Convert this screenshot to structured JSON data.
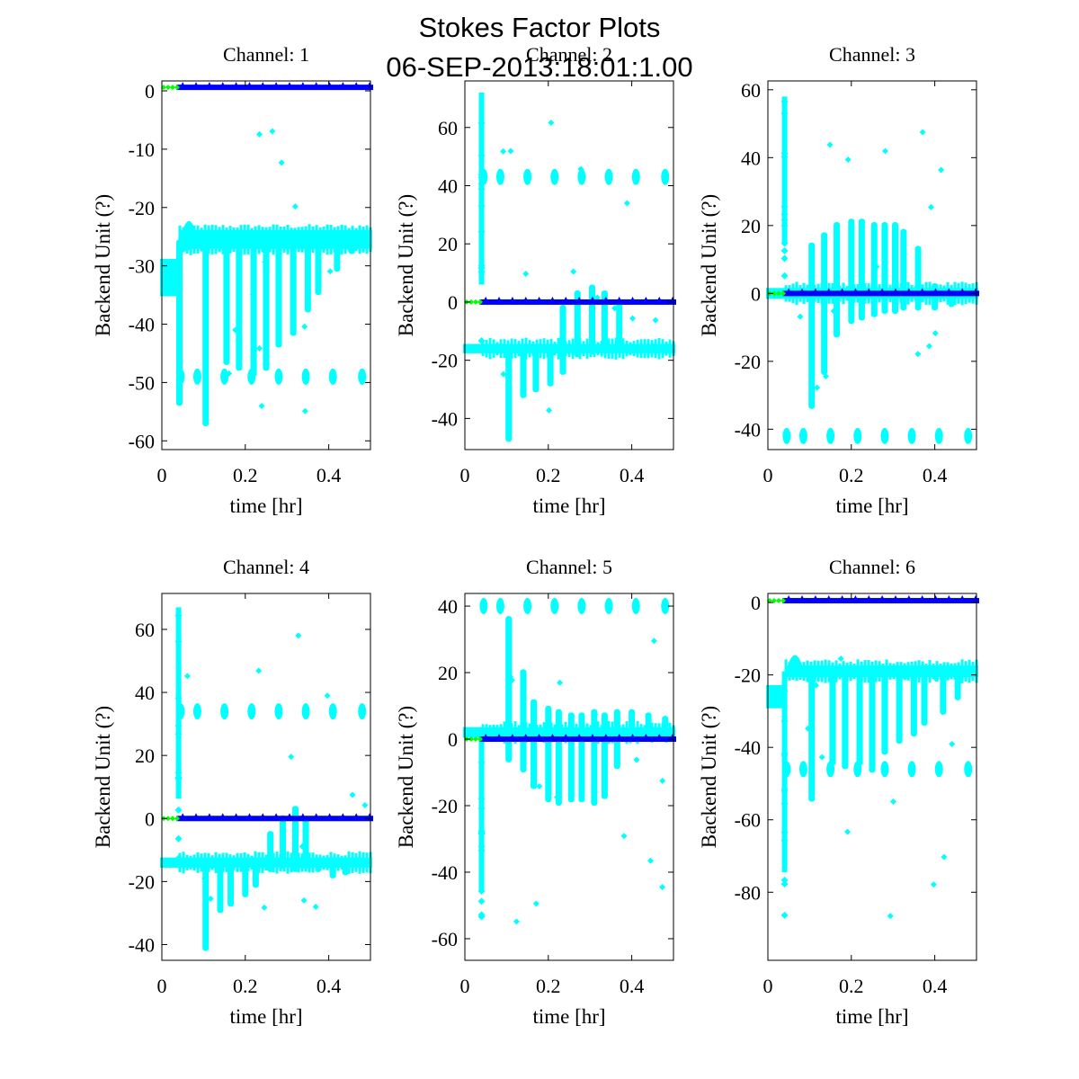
{
  "figure": {
    "title_line1": "Stokes Factor Plots",
    "title_line2": "06-SEP-2013:18:01:1.00"
  },
  "colors": {
    "stokes_main": "#00ffff",
    "stokes_reference": "#0000ff",
    "stokes_initial": "#00ff00",
    "axes": "#000000"
  },
  "chart_data": [
    {
      "type": "scatter",
      "title": "Channel: 1",
      "xlabel": "time [hr]",
      "ylabel": "Backend Unit (?)",
      "xlim": [
        0,
        0.5
      ],
      "ylim": [
        -61.5,
        1.7
      ],
      "xticks": [
        0,
        0.2,
        0.4
      ],
      "xtick_labels": [
        "0",
        "0.2",
        "0.4"
      ],
      "yticks": [
        0,
        -10,
        -20,
        -30,
        -40,
        -50,
        -60
      ],
      "ytick_labels": [
        "0",
        "-10",
        "-20",
        "-30",
        "-40",
        "-50",
        "-60"
      ],
      "grid": false,
      "series": [
        {
          "name": "initial",
          "color": "green",
          "x_range": [
            0,
            0.035
          ],
          "level": 0.5
        },
        {
          "name": "reference",
          "color": "blue",
          "x_range": [
            0.035,
            0.5
          ],
          "level": 0.6
        },
        {
          "name": "main",
          "color": "cyan",
          "baseline": -25.5,
          "early_baseline": -32,
          "bump": {
            "x": 0.065,
            "y": -21
          },
          "spikes": [
            {
              "x": 0.042,
              "y": -54
            },
            {
              "x": 0.105,
              "y": -57.5
            },
            {
              "x": 0.155,
              "y": -47
            },
            {
              "x": 0.185,
              "y": -48
            },
            {
              "x": 0.22,
              "y": -49
            },
            {
              "x": 0.25,
              "y": -48
            },
            {
              "x": 0.28,
              "y": -44
            },
            {
              "x": 0.315,
              "y": -42
            },
            {
              "x": 0.35,
              "y": -38
            },
            {
              "x": 0.375,
              "y": -35
            },
            {
              "x": 0.42,
              "y": -31
            },
            {
              "x": 0.455,
              "y": -28
            }
          ],
          "clusters": [
            {
              "x": 0.045,
              "y": -49
            },
            {
              "x": 0.085,
              "y": -49
            },
            {
              "x": 0.15,
              "y": -49
            },
            {
              "x": 0.215,
              "y": -49
            },
            {
              "x": 0.28,
              "y": -49
            },
            {
              "x": 0.345,
              "y": -49
            },
            {
              "x": 0.41,
              "y": -49
            },
            {
              "x": 0.48,
              "y": -49
            }
          ]
        }
      ]
    },
    {
      "type": "scatter",
      "title": "Channel: 2",
      "xlabel": "time [hr]",
      "ylabel": "Backend Unit (?)",
      "xlim": [
        0,
        0.5
      ],
      "ylim": [
        -50.7,
        76
      ],
      "xticks": [
        0,
        0.2,
        0.4
      ],
      "xtick_labels": [
        "0",
        "0.2",
        "0.4"
      ],
      "yticks": [
        60,
        40,
        20,
        0,
        -20,
        -40
      ],
      "ytick_labels": [
        "60",
        "40",
        "20",
        "0",
        "-20",
        "-40"
      ],
      "grid": false,
      "series": [
        {
          "name": "initial",
          "color": "green",
          "x_range": [
            0,
            0.035
          ],
          "level": 0
        },
        {
          "name": "reference",
          "color": "blue",
          "x_range": [
            0.035,
            0.5
          ],
          "level": 0
        },
        {
          "name": "main",
          "color": "cyan",
          "baseline": -16,
          "early_baseline": -16,
          "vertical_streak": {
            "x": 0.04,
            "y_top": 72
          },
          "spikes": [
            {
              "x": 0.105,
              "y": -48
            },
            {
              "x": 0.14,
              "y": -33
            },
            {
              "x": 0.17,
              "y": -31
            },
            {
              "x": 0.205,
              "y": -29
            },
            {
              "x": 0.235,
              "y": -25
            },
            {
              "x": 0.27,
              "y": -19
            },
            {
              "x": 0.305,
              "y": -18
            },
            {
              "x": 0.335,
              "y": -17
            },
            {
              "x": 0.37,
              "y": -17
            }
          ],
          "up_spikes": [
            {
              "x": 0.235,
              "y": -1
            },
            {
              "x": 0.27,
              "y": 4
            },
            {
              "x": 0.305,
              "y": 6
            },
            {
              "x": 0.335,
              "y": 4
            },
            {
              "x": 0.37,
              "y": 0
            }
          ],
          "clusters": [
            {
              "x": 0.045,
              "y": 43
            },
            {
              "x": 0.085,
              "y": 43
            },
            {
              "x": 0.15,
              "y": 43
            },
            {
              "x": 0.215,
              "y": 43
            },
            {
              "x": 0.28,
              "y": 43
            },
            {
              "x": 0.345,
              "y": 43
            },
            {
              "x": 0.41,
              "y": 43
            },
            {
              "x": 0.48,
              "y": 43
            }
          ]
        }
      ]
    },
    {
      "type": "scatter",
      "title": "Channel: 3",
      "xlabel": "time [hr]",
      "ylabel": "Backend Unit (?)",
      "xlim": [
        0,
        0.5
      ],
      "ylim": [
        -46,
        62.6
      ],
      "xticks": [
        0,
        0.2,
        0.4
      ],
      "xtick_labels": [
        "0",
        "0.2",
        "0.4"
      ],
      "yticks": [
        60,
        40,
        20,
        0,
        -20,
        -40
      ],
      "ytick_labels": [
        "60",
        "40",
        "20",
        "0",
        "-20",
        "-40"
      ],
      "grid": false,
      "series": [
        {
          "name": "initial",
          "color": "green",
          "x_range": [
            0,
            0.035
          ],
          "level": 0
        },
        {
          "name": "reference",
          "color": "blue",
          "x_range": [
            0.035,
            0.5
          ],
          "level": 0
        },
        {
          "name": "main",
          "color": "cyan",
          "baseline": 0,
          "early_baseline": 0,
          "vertical_streak": {
            "x": 0.04,
            "y_top": 58
          },
          "spikes": [
            {
              "x": 0.105,
              "y": -34
            },
            {
              "x": 0.135,
              "y": -24
            },
            {
              "x": 0.165,
              "y": -13
            },
            {
              "x": 0.2,
              "y": -9
            },
            {
              "x": 0.225,
              "y": -8
            },
            {
              "x": 0.255,
              "y": -7
            },
            {
              "x": 0.28,
              "y": -6
            },
            {
              "x": 0.305,
              "y": -6
            },
            {
              "x": 0.325,
              "y": -5
            },
            {
              "x": 0.36,
              "y": -5
            },
            {
              "x": 0.4,
              "y": -5
            },
            {
              "x": 0.44,
              "y": -4
            }
          ],
          "up_spikes": [
            {
              "x": 0.105,
              "y": 15
            },
            {
              "x": 0.135,
              "y": 18
            },
            {
              "x": 0.165,
              "y": 21
            },
            {
              "x": 0.2,
              "y": 22
            },
            {
              "x": 0.225,
              "y": 22
            },
            {
              "x": 0.255,
              "y": 21
            },
            {
              "x": 0.28,
              "y": 21
            },
            {
              "x": 0.305,
              "y": 21
            },
            {
              "x": 0.325,
              "y": 19
            },
            {
              "x": 0.36,
              "y": 14
            },
            {
              "x": 0.4,
              "y": 3
            }
          ],
          "clusters": [
            {
              "x": 0.045,
              "y": -42
            },
            {
              "x": 0.085,
              "y": -42
            },
            {
              "x": 0.15,
              "y": -42
            },
            {
              "x": 0.215,
              "y": -42
            },
            {
              "x": 0.28,
              "y": -42
            },
            {
              "x": 0.345,
              "y": -42
            },
            {
              "x": 0.41,
              "y": -42
            },
            {
              "x": 0.48,
              "y": -42
            }
          ]
        }
      ]
    },
    {
      "type": "scatter",
      "title": "Channel: 4",
      "xlabel": "time [hr]",
      "ylabel": "Backend Unit (?)",
      "xlim": [
        0,
        0.5
      ],
      "ylim": [
        -45,
        71.4
      ],
      "xticks": [
        0,
        0.2,
        0.4
      ],
      "xtick_labels": [
        "0",
        "0.2",
        "0.4"
      ],
      "yticks": [
        60,
        40,
        20,
        0,
        -20,
        -40
      ],
      "ytick_labels": [
        "60",
        "40",
        "20",
        "0",
        "-20",
        "-40"
      ],
      "grid": false,
      "series": [
        {
          "name": "initial",
          "color": "green",
          "x_range": [
            0,
            0.035
          ],
          "level": 0
        },
        {
          "name": "reference",
          "color": "blue",
          "x_range": [
            0.035,
            0.5
          ],
          "level": 0
        },
        {
          "name": "main",
          "color": "cyan",
          "baseline": -14,
          "early_baseline": -14,
          "vertical_streak": {
            "x": 0.04,
            "y_top": 67
          },
          "spikes": [
            {
              "x": 0.105,
              "y": -42
            },
            {
              "x": 0.14,
              "y": -30
            },
            {
              "x": 0.165,
              "y": -28
            },
            {
              "x": 0.2,
              "y": -25
            },
            {
              "x": 0.225,
              "y": -22
            },
            {
              "x": 0.26,
              "y": -17
            },
            {
              "x": 0.29,
              "y": -16
            },
            {
              "x": 0.32,
              "y": -17
            },
            {
              "x": 0.345,
              "y": -16
            },
            {
              "x": 0.375,
              "y": -17
            },
            {
              "x": 0.41,
              "y": -19
            },
            {
              "x": 0.44,
              "y": -18
            }
          ],
          "up_spikes": [
            {
              "x": 0.26,
              "y": -4
            },
            {
              "x": 0.29,
              "y": 1
            },
            {
              "x": 0.32,
              "y": 4
            },
            {
              "x": 0.345,
              "y": 0
            }
          ],
          "clusters": [
            {
              "x": 0.045,
              "y": 34
            },
            {
              "x": 0.085,
              "y": 34
            },
            {
              "x": 0.15,
              "y": 34
            },
            {
              "x": 0.215,
              "y": 34
            },
            {
              "x": 0.28,
              "y": 34
            },
            {
              "x": 0.345,
              "y": 34
            },
            {
              "x": 0.41,
              "y": 34
            },
            {
              "x": 0.48,
              "y": 34
            }
          ]
        }
      ]
    },
    {
      "type": "scatter",
      "title": "Channel: 5",
      "xlabel": "time [hr]",
      "ylabel": "Backend Unit (?)",
      "xlim": [
        0,
        0.5
      ],
      "ylim": [
        -66.5,
        43.8
      ],
      "xticks": [
        0,
        0.2,
        0.4
      ],
      "xtick_labels": [
        "0",
        "0.2",
        "0.4"
      ],
      "yticks": [
        40,
        20,
        0,
        -20,
        -40,
        -60
      ],
      "ytick_labels": [
        "40",
        "20",
        "0",
        "-20",
        "-40",
        "-60"
      ],
      "grid": false,
      "series": [
        {
          "name": "initial",
          "color": "green",
          "x_range": [
            0,
            0.035
          ],
          "level": 0
        },
        {
          "name": "reference",
          "color": "blue",
          "x_range": [
            0.035,
            0.5
          ],
          "level": 0
        },
        {
          "name": "main",
          "color": "cyan",
          "baseline": 2,
          "early_baseline": 2,
          "vertical_streak": {
            "x": 0.04,
            "y_bottom": -61
          },
          "spikes": [
            {
              "x": 0.105,
              "y": -7
            },
            {
              "x": 0.14,
              "y": -10
            },
            {
              "x": 0.165,
              "y": -15
            },
            {
              "x": 0.2,
              "y": -19
            },
            {
              "x": 0.225,
              "y": -20
            },
            {
              "x": 0.255,
              "y": -19
            },
            {
              "x": 0.28,
              "y": -19
            },
            {
              "x": 0.31,
              "y": -20
            },
            {
              "x": 0.335,
              "y": -18
            },
            {
              "x": 0.365,
              "y": -9
            }
          ],
          "up_spikes": [
            {
              "x": 0.105,
              "y": 37
            },
            {
              "x": 0.14,
              "y": 21
            },
            {
              "x": 0.165,
              "y": 12
            },
            {
              "x": 0.2,
              "y": 10
            },
            {
              "x": 0.225,
              "y": 9
            },
            {
              "x": 0.255,
              "y": 8
            },
            {
              "x": 0.28,
              "y": 8
            },
            {
              "x": 0.31,
              "y": 9
            },
            {
              "x": 0.335,
              "y": 8
            },
            {
              "x": 0.365,
              "y": 9
            },
            {
              "x": 0.4,
              "y": 9
            },
            {
              "x": 0.44,
              "y": 8
            },
            {
              "x": 0.48,
              "y": 7
            }
          ],
          "clusters": [
            {
              "x": 0.045,
              "y": 40
            },
            {
              "x": 0.085,
              "y": 40
            },
            {
              "x": 0.15,
              "y": 40
            },
            {
              "x": 0.215,
              "y": 40
            },
            {
              "x": 0.28,
              "y": 40
            },
            {
              "x": 0.345,
              "y": 40
            },
            {
              "x": 0.41,
              "y": 40
            },
            {
              "x": 0.48,
              "y": 40
            }
          ]
        }
      ]
    },
    {
      "type": "scatter",
      "title": "Channel: 6",
      "xlabel": "time [hr]",
      "ylabel": "Backend Unit (?)",
      "xlim": [
        0,
        0.5
      ],
      "ylim": [
        -98.8,
        2.5
      ],
      "xticks": [
        0,
        0.2,
        0.4
      ],
      "xtick_labels": [
        "0",
        "0.2",
        "0.4"
      ],
      "yticks": [
        0,
        -20,
        -40,
        -60,
        -80
      ],
      "ytick_labels": [
        "0",
        "-20",
        "-40",
        "-60",
        "-80"
      ],
      "grid": false,
      "series": [
        {
          "name": "initial",
          "color": "green",
          "x_range": [
            0,
            0.035
          ],
          "level": 0.5
        },
        {
          "name": "reference",
          "color": "blue",
          "x_range": [
            0.035,
            0.5
          ],
          "level": 0.5
        },
        {
          "name": "main",
          "color": "cyan",
          "baseline": -19,
          "early_baseline": -26,
          "bump": {
            "x": 0.065,
            "y": -13
          },
          "vertical_streak": {
            "x": 0.04,
            "y_bottom": -93
          },
          "spikes": [
            {
              "x": 0.105,
              "y": -55
            },
            {
              "x": 0.155,
              "y": -45
            },
            {
              "x": 0.185,
              "y": -46
            },
            {
              "x": 0.22,
              "y": -45
            },
            {
              "x": 0.25,
              "y": -47
            },
            {
              "x": 0.28,
              "y": -42
            },
            {
              "x": 0.315,
              "y": -39
            },
            {
              "x": 0.35,
              "y": -37
            },
            {
              "x": 0.375,
              "y": -34
            },
            {
              "x": 0.42,
              "y": -31
            },
            {
              "x": 0.455,
              "y": -27
            }
          ],
          "clusters": [
            {
              "x": 0.045,
              "y": -46
            },
            {
              "x": 0.085,
              "y": -46
            },
            {
              "x": 0.15,
              "y": -46
            },
            {
              "x": 0.215,
              "y": -46
            },
            {
              "x": 0.28,
              "y": -46
            },
            {
              "x": 0.345,
              "y": -46
            },
            {
              "x": 0.41,
              "y": -46
            },
            {
              "x": 0.48,
              "y": -46
            }
          ]
        }
      ]
    }
  ]
}
